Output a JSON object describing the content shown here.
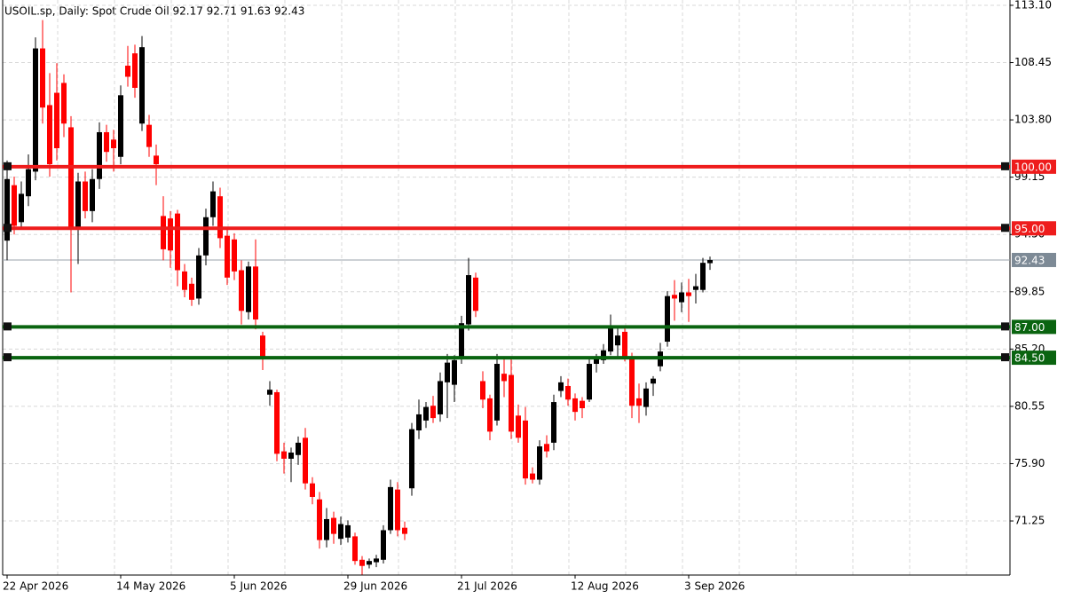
{
  "chart_data": {
    "type": "candlestick",
    "title": "USOIL.sp, Daily:  Spot Crude Oil  92.17 92.71 91.63 92.43",
    "categories": [
      "22 Apr 2026",
      null,
      null,
      null,
      null,
      null,
      null,
      null,
      null,
      null,
      null,
      null,
      null,
      null,
      null,
      null,
      "14 May 2026",
      null,
      null,
      null,
      null,
      null,
      null,
      null,
      null,
      null,
      null,
      null,
      null,
      null,
      null,
      null,
      "5 Jun 2026",
      null,
      null,
      null,
      null,
      null,
      null,
      null,
      null,
      null,
      null,
      null,
      null,
      null,
      null,
      null,
      "29 Jun 2026",
      null,
      null,
      null,
      null,
      null,
      null,
      null,
      null,
      null,
      null,
      null,
      null,
      null,
      null,
      null,
      "21 Jul 2026",
      null,
      null,
      null,
      null,
      null,
      null,
      null,
      null,
      null,
      null,
      null,
      null,
      null,
      null,
      null,
      "12 Aug 2026",
      null,
      null,
      null,
      null,
      null,
      null,
      null,
      null,
      null,
      null,
      null,
      null,
      null,
      null,
      null,
      "3 Sep 2026",
      null,
      null,
      null
    ],
    "open": [
      94.0,
      98.5,
      95.5,
      97.6,
      99.6,
      109.6,
      105.0,
      106.0,
      106.8,
      103.2,
      95.0,
      98.8,
      96.4,
      99.0,
      102.8,
      102.2,
      100.8,
      108.2,
      109.2,
      103.5,
      103.4,
      100.9,
      96.0,
      95.8,
      96.2,
      91.5,
      90.5,
      89.3,
      92.8,
      95.9,
      97.6,
      94.4,
      94.1,
      91.6,
      88.2,
      91.9,
      86.3,
      81.5,
      81.7,
      76.9,
      76.3,
      76.6,
      78.0,
      74.3,
      73.0,
      69.7,
      71.5,
      69.8,
      69.9,
      70.0,
      68.1,
      67.7,
      67.9,
      68.1,
      70.5,
      73.8,
      70.7,
      73.9,
      78.6,
      79.4,
      80.6,
      79.9,
      82.5,
      82.3,
      84.4,
      87.2,
      91.0,
      82.6,
      81.2,
      79.4,
      83.2,
      83.1,
      79.8,
      79.4,
      75.1,
      74.6,
      77.5,
      77.6,
      81.8,
      82.2,
      81.2,
      81.0,
      81.1,
      84.0,
      84.3,
      85.0,
      85.5,
      86.6,
      84.5,
      81.2,
      80.5,
      82.4,
      83.8,
      85.8,
      89.6,
      89.0,
      89.8,
      90.0,
      90.0,
      92.17
    ],
    "high": [
      100.5,
      99.2,
      98.8,
      101.0,
      110.5,
      111.9,
      107.6,
      108.4,
      107.5,
      104.1,
      99.5,
      99.6,
      99.8,
      103.6,
      103.4,
      103.0,
      106.6,
      109.8,
      109.9,
      110.6,
      104.2,
      101.8,
      97.6,
      96.4,
      96.5,
      92.1,
      91.0,
      93.4,
      96.6,
      98.8,
      98.3,
      95.0,
      94.6,
      92.4,
      92.3,
      94.1,
      86.6,
      82.6,
      81.9,
      77.6,
      77.2,
      78.1,
      78.8,
      74.8,
      73.6,
      72.3,
      72.0,
      71.6,
      71.3,
      70.3,
      68.4,
      68.2,
      68.5,
      70.9,
      74.6,
      74.4,
      71.2,
      79.2,
      81.1,
      80.9,
      81.4,
      83.3,
      84.8,
      84.7,
      87.9,
      92.6,
      91.4,
      83.4,
      81.5,
      84.8,
      84.6,
      84.5,
      80.7,
      80.5,
      75.6,
      77.8,
      78.2,
      81.5,
      83.0,
      82.8,
      81.6,
      81.3,
      84.4,
      84.8,
      85.6,
      88.0,
      87.0,
      87.1,
      84.9,
      82.4,
      82.5,
      83.0,
      85.7,
      89.9,
      90.8,
      90.6,
      90.9,
      91.3,
      92.6,
      92.71
    ],
    "low": [
      92.4,
      94.5,
      95.0,
      96.8,
      98.9,
      103.5,
      99.2,
      100.5,
      102.4,
      89.8,
      92.1,
      95.8,
      95.5,
      98.2,
      100.4,
      99.6,
      100.2,
      106.5,
      105.6,
      102.9,
      100.8,
      98.5,
      92.4,
      91.8,
      90.3,
      89.4,
      88.7,
      88.8,
      92.0,
      95.2,
      93.4,
      90.4,
      90.8,
      87.2,
      87.6,
      86.8,
      83.5,
      80.6,
      76.1,
      75.1,
      74.4,
      75.8,
      73.8,
      72.6,
      69.0,
      69.1,
      69.4,
      69.3,
      69.5,
      67.7,
      66.9,
      67.4,
      67.5,
      67.8,
      70.2,
      70.0,
      69.7,
      73.3,
      77.9,
      78.8,
      79.2,
      79.3,
      79.6,
      80.9,
      84.0,
      86.7,
      87.8,
      80.4,
      77.8,
      79.0,
      81.3,
      77.9,
      77.6,
      74.2,
      74.3,
      74.2,
      76.4,
      77.0,
      81.3,
      80.6,
      79.4,
      79.6,
      80.9,
      83.3,
      84.0,
      84.7,
      84.6,
      84.2,
      79.6,
      79.2,
      79.8,
      81.4,
      83.4,
      85.4,
      87.5,
      88.2,
      87.4,
      88.9,
      89.8,
      91.63
    ],
    "close": [
      99.0,
      95.2,
      97.8,
      99.8,
      109.6,
      104.8,
      100.2,
      101.5,
      103.5,
      95.0,
      98.8,
      96.4,
      99.0,
      102.8,
      101.2,
      101.5,
      105.8,
      107.3,
      106.4,
      109.7,
      101.6,
      100.2,
      93.3,
      93.2,
      91.6,
      90.0,
      89.2,
      92.8,
      95.9,
      98.0,
      94.2,
      91.0,
      91.5,
      88.3,
      91.9,
      87.6,
      84.6,
      81.9,
      76.7,
      76.3,
      76.8,
      77.6,
      74.3,
      73.2,
      69.7,
      71.4,
      70.2,
      71.0,
      70.9,
      68.0,
      67.6,
      68.0,
      68.2,
      70.5,
      74.0,
      70.5,
      70.2,
      78.7,
      79.9,
      80.5,
      79.6,
      82.6,
      84.1,
      84.3,
      87.3,
      91.2,
      88.3,
      81.1,
      78.5,
      84.0,
      82.6,
      78.5,
      78.0,
      74.7,
      74.6,
      77.3,
      76.9,
      80.9,
      82.5,
      81.1,
      80.1,
      80.4,
      84.0,
      84.4,
      85.1,
      87.1,
      86.3,
      84.5,
      80.6,
      80.6,
      82.0,
      82.8,
      85.0,
      89.5,
      89.3,
      89.8,
      89.5,
      90.3,
      92.2,
      92.43
    ],
    "up_color": "#000000",
    "down_color": "#ff0000",
    "ylim": [
      66.86,
      113.53
    ],
    "yticks": [
      {
        "value": 113.1,
        "label": "113.10"
      },
      {
        "value": 108.45,
        "label": "108.45"
      },
      {
        "value": 103.8,
        "label": "103.80"
      },
      {
        "value": 99.15,
        "label": "99.15"
      },
      {
        "value": 94.5,
        "label": "94.50"
      },
      {
        "value": 89.85,
        "label": "89.85"
      },
      {
        "value": 85.2,
        "label": "85.20"
      },
      {
        "value": 80.55,
        "label": "80.55"
      },
      {
        "value": 75.9,
        "label": "75.90"
      },
      {
        "value": 71.25,
        "label": "71.25"
      }
    ],
    "grid": true,
    "levels": [
      {
        "value": 100,
        "label": "100.00",
        "color": "#ee1c1c"
      },
      {
        "value": 95,
        "label": "95.00",
        "color": "#ee1c1c"
      },
      {
        "value": 87,
        "label": "87.00",
        "color": "#0a6410"
      },
      {
        "value": 84.5,
        "label": "84.50",
        "color": "#0a6410"
      }
    ],
    "last_price": {
      "value": 92.43,
      "label": "92.43",
      "color": "#7d8a96"
    }
  }
}
